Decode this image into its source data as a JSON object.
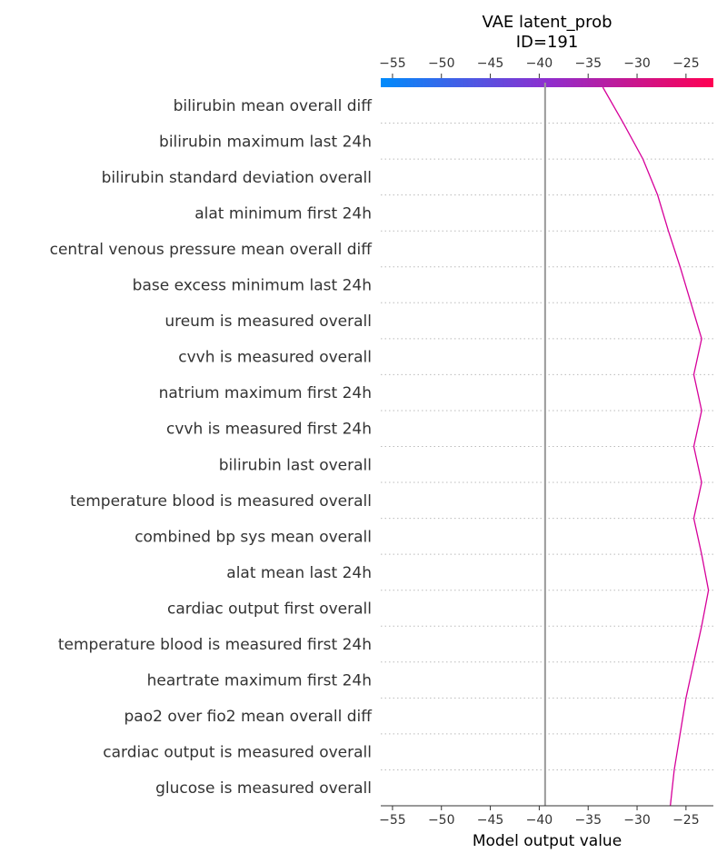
{
  "chart_data": {
    "type": "line",
    "title": "VAE latent_prob",
    "subtitle": "ID=191",
    "xlabel": "Model output value",
    "xlim": [
      -56.2,
      -22.2
    ],
    "xticks": [
      -55,
      -50,
      -45,
      -40,
      -35,
      -30,
      -25
    ],
    "xtick_labels": [
      "−55",
      "−50",
      "−45",
      "−40",
      "−35",
      "−30",
      "−25"
    ],
    "base_value": -39.4,
    "colorbar": {
      "low_color": "#008bfb",
      "mid_color": "#8e2ecf",
      "high_color": "#ff0052"
    },
    "line_color": "#d6009a",
    "features": [
      "bilirubin  mean  overall  diff",
      "bilirubin  maximum  last 24h",
      "bilirubin  standard deviation  overall",
      "alat  minimum  first 24h",
      "central venous pressure  mean  overall  diff",
      "base excess  minimum  last 24h",
      "ureum  is measured  overall",
      "cvvh  is measured  overall",
      "natrium  maximum  first 24h",
      "cvvh  is measured  first 24h",
      "bilirubin  last  overall",
      "temperature blood  is measured  overall",
      "combined bp sys  mean  overall",
      "alat  mean  last 24h",
      "cardiac output  first  overall",
      "temperature blood  is measured  first 24h",
      "heartrate  maximum  first 24h",
      "pao2 over fio2  mean  overall  diff",
      "cardiac output  is measured  overall",
      "glucose  is measured  overall"
    ],
    "path_values": [
      -33.5,
      -31.4,
      -29.4,
      -27.9,
      -26.8,
      -25.6,
      -24.5,
      -23.4,
      -24.2,
      -23.4,
      -24.2,
      -23.4,
      -24.2,
      -23.4,
      -22.7,
      -23.4,
      -24.2,
      -25.0,
      -25.6,
      -26.2,
      -26.6
    ]
  }
}
